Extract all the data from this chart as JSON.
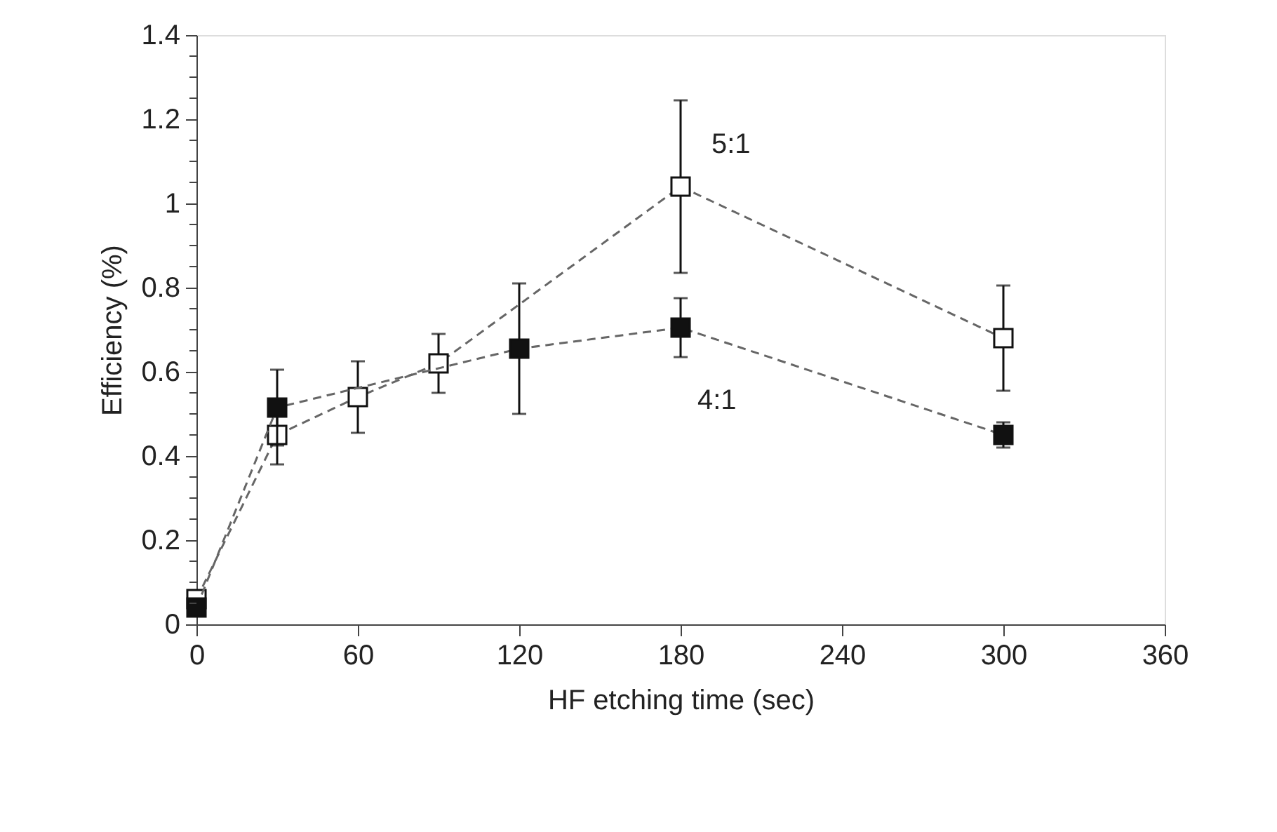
{
  "chart_data": {
    "type": "line",
    "xlabel": "HF etching time (sec)",
    "ylabel": "Efficiency (%)",
    "xlim": [
      0,
      360
    ],
    "xticks": [
      0,
      60,
      120,
      180,
      240,
      300,
      360
    ],
    "ylim": [
      0,
      1.4
    ],
    "yticks": [
      0,
      {
        "value": 0.05,
        "label": null
      },
      {
        "value": 0.1,
        "label": null
      },
      {
        "value": 0.15,
        "label": null
      },
      0.2,
      {
        "value": 0.25,
        "label": null
      },
      {
        "value": 0.3,
        "label": null
      },
      {
        "value": 0.35,
        "label": null
      },
      0.4,
      {
        "value": 0.45,
        "label": null
      },
      {
        "value": 0.5,
        "label": null
      },
      {
        "value": 0.55,
        "label": null
      },
      0.6,
      {
        "value": 0.65,
        "label": null
      },
      {
        "value": 0.7,
        "label": null
      },
      {
        "value": 0.75,
        "label": null
      },
      0.8,
      {
        "value": 0.85,
        "label": null
      },
      {
        "value": 0.9,
        "label": null
      },
      {
        "value": 0.95,
        "label": null
      },
      1,
      {
        "value": 1.05,
        "label": null
      },
      {
        "value": 1.1,
        "label": null
      },
      {
        "value": 1.15,
        "label": null
      },
      1.2,
      {
        "value": 1.25,
        "label": null
      },
      {
        "value": 1.3,
        "label": null
      },
      {
        "value": 1.35,
        "label": null
      },
      1.4
    ],
    "grid": false,
    "marker": "square",
    "line_style": "dashed",
    "series": [
      {
        "name": "5:1",
        "color": "#ffffff",
        "x": [
          0,
          30,
          60,
          90,
          180,
          300
        ],
        "values": [
          0.06,
          0.45,
          0.54,
          0.62,
          1.04,
          0.68
        ],
        "errors": [
          null,
          0.07,
          0.085,
          0.07,
          0.205,
          0.125
        ]
      },
      {
        "name": "4:1",
        "color": "#111111",
        "x": [
          0,
          30,
          120,
          180,
          300
        ],
        "values": [
          0.04,
          0.515,
          0.655,
          0.705,
          0.45
        ],
        "errors": [
          null,
          0.09,
          0.155,
          0.07,
          0.03
        ]
      }
    ]
  }
}
